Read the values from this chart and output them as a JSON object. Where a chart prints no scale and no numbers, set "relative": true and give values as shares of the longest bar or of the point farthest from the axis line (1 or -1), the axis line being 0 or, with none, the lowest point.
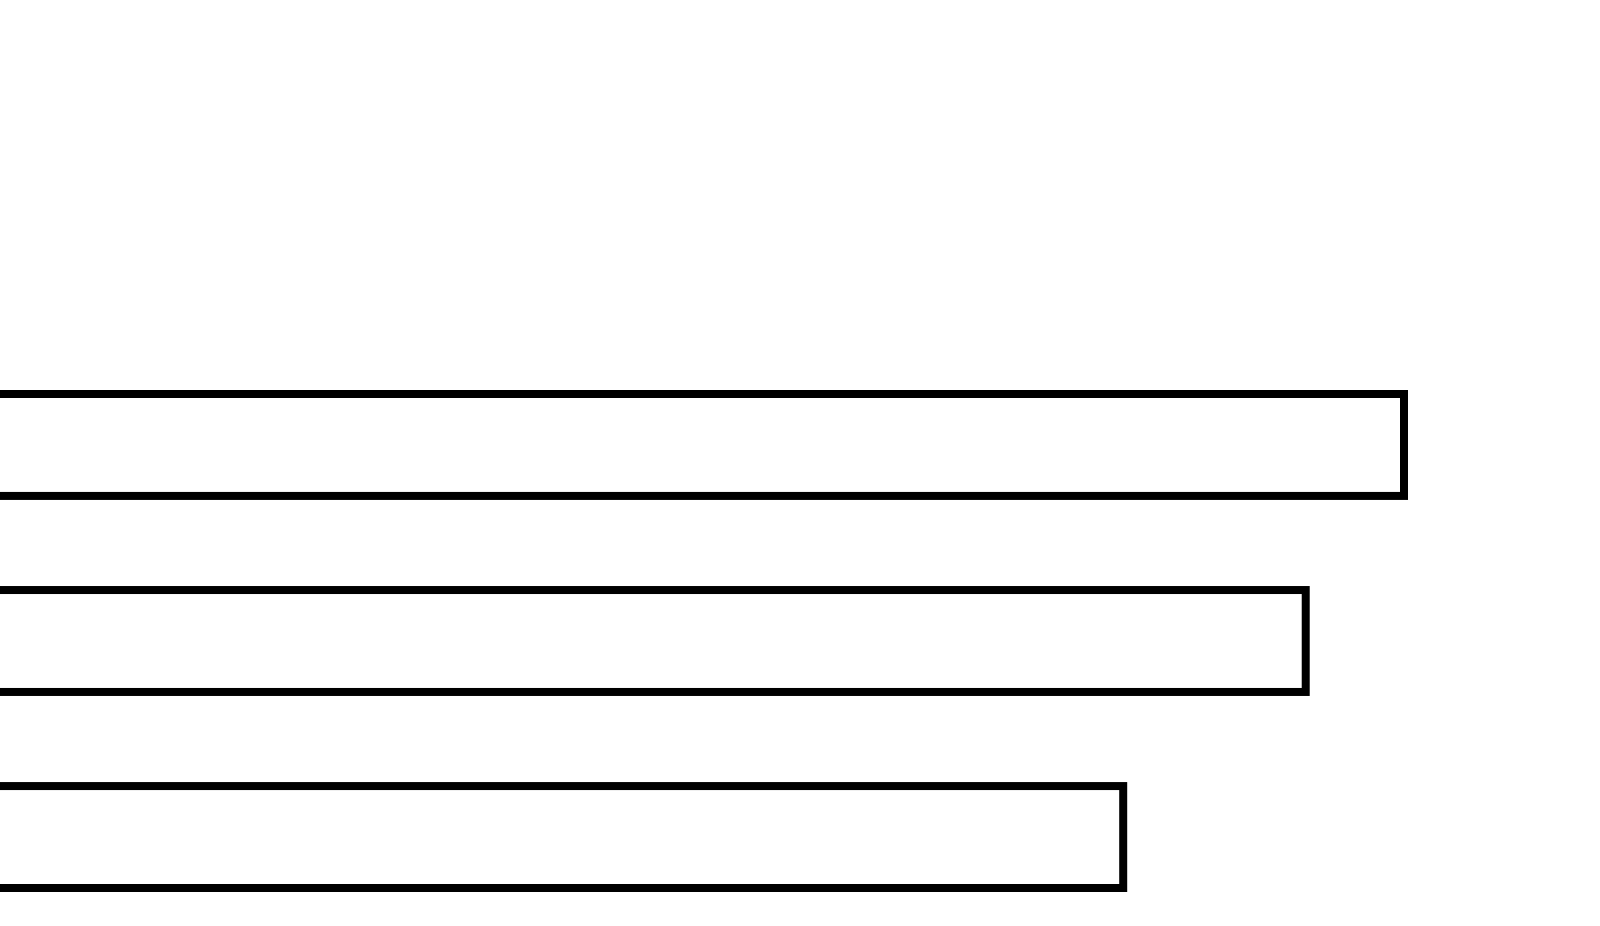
{
  "chart_data": {
    "type": "bar",
    "orientation": "horizontal",
    "relative": true,
    "categories": [
      null,
      null,
      null
    ],
    "values": [
      1,
      0.93,
      0.8
    ],
    "color": "#ffffff"
  }
}
